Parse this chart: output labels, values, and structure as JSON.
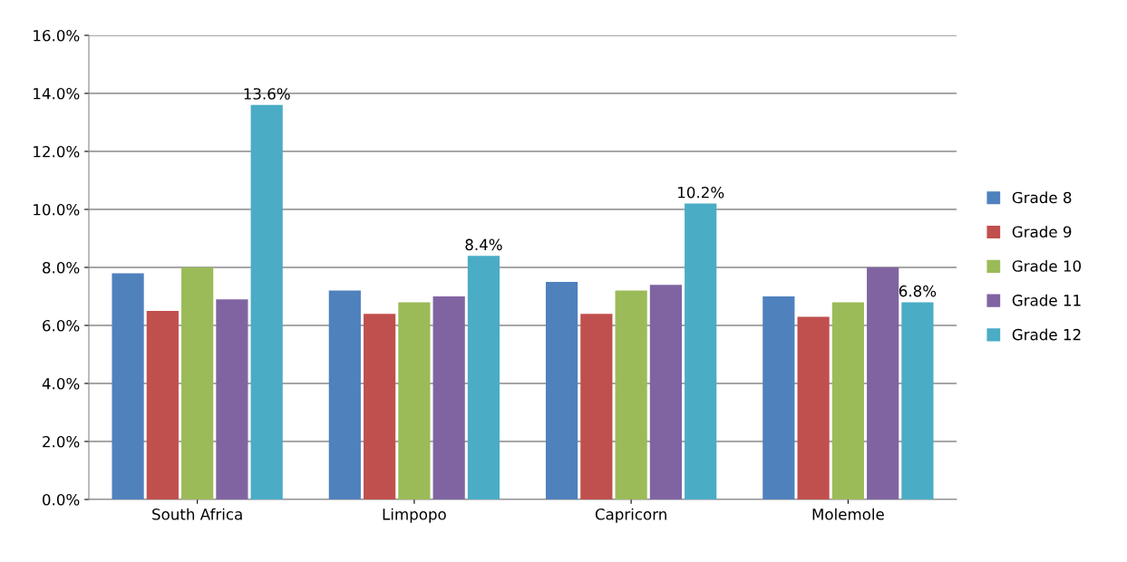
{
  "chart_data": {
    "type": "bar",
    "categories": [
      "South Africa",
      "Limpopo",
      "Capricorn",
      "Molemole"
    ],
    "series": [
      {
        "name": "Grade 8",
        "color": "#4f81bd",
        "values": [
          7.8,
          7.2,
          7.5,
          7.0
        ]
      },
      {
        "name": "Grade 9",
        "color": "#c0504d",
        "values": [
          6.5,
          6.4,
          6.4,
          6.3
        ]
      },
      {
        "name": "Grade 10",
        "color": "#9bbb59",
        "values": [
          8.0,
          6.8,
          7.2,
          6.8
        ]
      },
      {
        "name": "Grade 11",
        "color": "#8064a2",
        "values": [
          6.9,
          7.0,
          7.4,
          8.0
        ]
      },
      {
        "name": "Grade 12",
        "color": "#4bacc6",
        "values": [
          13.6,
          8.4,
          10.2,
          6.8
        ],
        "value_labels": [
          "13.6%",
          "8.4%",
          "10.2%",
          "6.8%"
        ]
      }
    ],
    "ylim": [
      0,
      16
    ],
    "yticks": [
      {
        "value": 0,
        "label": "0.0%"
      },
      {
        "value": 2,
        "label": "2.0%"
      },
      {
        "value": 4,
        "label": "4.0%"
      },
      {
        "value": 6,
        "label": "6.0%"
      },
      {
        "value": 8,
        "label": "8.0%"
      },
      {
        "value": 10,
        "label": "10.0%"
      },
      {
        "value": 12,
        "label": "12.0%"
      },
      {
        "value": 14,
        "label": "14.0%"
      },
      {
        "value": 16,
        "label": "16.0%"
      }
    ],
    "grid": "y",
    "legend": "right"
  }
}
